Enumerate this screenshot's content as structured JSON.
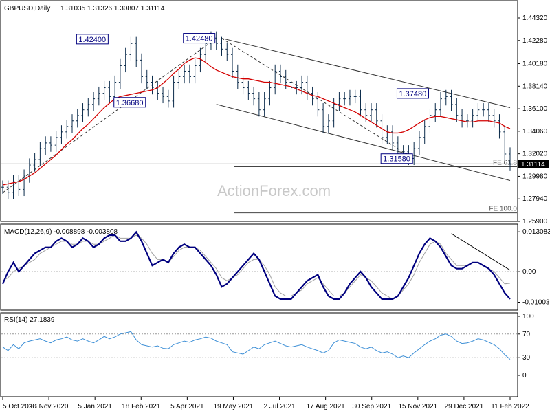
{
  "header": {
    "symbol": "GBPUSD,Daily",
    "ohlc": "1.31035 1.31326 1.30807 1.31114"
  },
  "watermark": "ActionForex.com",
  "colors": {
    "background": "#ffffff",
    "bars": "#0a2a4a",
    "ma": "#d40000",
    "macd": "#00007f",
    "signal": "#a0a0a0",
    "rsi": "#3d8fd6",
    "trendline": "#333333",
    "callout": "#00007f"
  },
  "chart_data": [
    {
      "type": "ohlc",
      "panel": "price",
      "x_ticks": [
        "5 Oct 2020",
        "18 Nov 2020",
        "5 Jan 2021",
        "18 Feb 2021",
        "5 Apr 2021",
        "19 May 2021",
        "2 Jul 2021",
        "17 Aug 2021",
        "30 Sep 2021",
        "15 Nov 2021",
        "29 Dec 2021",
        "11 Feb 2022"
      ],
      "y_ticks": [
        "1.44320",
        "1.42280",
        "1.40180",
        "1.38140",
        "1.36100",
        "1.34060",
        "1.32020",
        "1.29980",
        "1.27940",
        "1.25900"
      ],
      "ylim": [
        1.259,
        1.4432
      ],
      "last_price_label": "1.31114",
      "series": [
        {
          "name": "close",
          "values": [
            1.29,
            1.285,
            1.295,
            1.288,
            1.3,
            1.31,
            1.315,
            1.325,
            1.33,
            1.328,
            1.335,
            1.34,
            1.345,
            1.35,
            1.355,
            1.36,
            1.365,
            1.37,
            1.375,
            1.38,
            1.372,
            1.385,
            1.4,
            1.41,
            1.42,
            1.405,
            1.39,
            1.385,
            1.38,
            1.375,
            1.372,
            1.368,
            1.385,
            1.39,
            1.395,
            1.39,
            1.4,
            1.41,
            1.42,
            1.425,
            1.42,
            1.415,
            1.41,
            1.395,
            1.385,
            1.38,
            1.375,
            1.37,
            1.36,
            1.37,
            1.38,
            1.395,
            1.39,
            1.385,
            1.38,
            1.38,
            1.385,
            1.375,
            1.37,
            1.36,
            1.345,
            1.35,
            1.365,
            1.37,
            1.37,
            1.372,
            1.372,
            1.36,
            1.355,
            1.36,
            1.35,
            1.335,
            1.34,
            1.33,
            1.32,
            1.322,
            1.316,
            1.325,
            1.335,
            1.345,
            1.355,
            1.36,
            1.37,
            1.372,
            1.365,
            1.355,
            1.35,
            1.35,
            1.355,
            1.36,
            1.36,
            1.355,
            1.35,
            1.34,
            1.32,
            1.31114
          ]
        },
        {
          "name": "MA",
          "values": [
            1.292,
            1.293,
            1.294,
            1.295,
            1.297,
            1.3,
            1.303,
            1.307,
            1.311,
            1.315,
            1.319,
            1.324,
            1.329,
            1.333,
            1.338,
            1.343,
            1.347,
            1.352,
            1.357,
            1.362,
            1.366,
            1.37,
            1.372,
            1.373,
            1.374,
            1.375,
            1.376,
            1.377,
            1.378,
            1.38,
            1.384,
            1.388,
            1.393,
            1.397,
            1.402,
            1.405,
            1.407,
            1.406,
            1.403,
            1.399,
            1.396,
            1.394,
            1.392,
            1.39,
            1.389,
            1.388,
            1.388,
            1.387,
            1.386,
            1.385,
            1.385,
            1.384,
            1.383,
            1.382,
            1.381,
            1.379,
            1.377,
            1.375,
            1.373,
            1.372,
            1.37,
            1.368,
            1.366,
            1.364,
            1.362,
            1.36,
            1.358,
            1.355,
            1.352,
            1.349,
            1.346,
            1.343,
            1.34,
            1.339,
            1.339,
            1.34,
            1.342,
            1.345,
            1.348,
            1.351,
            1.353,
            1.354,
            1.354,
            1.353,
            1.352,
            1.351,
            1.35,
            1.349,
            1.349,
            1.35,
            1.35,
            1.35,
            1.349,
            1.348,
            1.345,
            1.343
          ]
        }
      ],
      "annotations": [
        {
          "label": "1.42400",
          "value": 1.424
        },
        {
          "label": "1.42480",
          "value": 1.4248
        },
        {
          "label": "1.36680",
          "value": 1.3668
        },
        {
          "label": "1.37480",
          "value": 1.3748
        },
        {
          "label": "1.31580",
          "value": 1.3158
        }
      ],
      "levels": [
        {
          "label": "FE 61.8",
          "value": 1.3085
        },
        {
          "label": "FE 100.0",
          "value": 1.2667
        }
      ]
    },
    {
      "type": "line",
      "panel": "macd",
      "title": "MACD(12,26,9) -0.008898 -0.003808",
      "y_ticks": [
        "0.013083",
        "0.00",
        "-0.01003"
      ],
      "ylim": [
        -0.0115,
        0.0138
      ],
      "series": [
        {
          "name": "MACD",
          "values": [
            -0.004,
            0.0,
            0.003,
            0.0,
            0.002,
            0.004,
            0.006,
            0.007,
            0.008,
            0.008,
            0.01,
            0.011,
            0.01,
            0.008,
            0.009,
            0.011,
            0.01,
            0.008,
            0.009,
            0.011,
            0.012,
            0.012,
            0.01,
            0.01,
            0.011,
            0.013,
            0.01,
            0.006,
            0.002,
            0.003,
            0.004,
            0.003,
            0.006,
            0.008,
            0.009,
            0.008,
            0.008,
            0.006,
            0.004,
            0.002,
            -0.001,
            -0.005,
            -0.004,
            -0.002,
            0.0,
            0.002,
            0.004,
            0.006,
            0.004,
            0.0,
            -0.004,
            -0.008,
            -0.009,
            -0.009,
            -0.009,
            -0.007,
            -0.005,
            -0.003,
            -0.002,
            -0.001,
            -0.005,
            -0.008,
            -0.009,
            -0.009,
            -0.007,
            -0.004,
            -0.002,
            0.0,
            -0.002,
            -0.005,
            -0.007,
            -0.009,
            -0.009,
            -0.009,
            -0.008,
            -0.005,
            -0.002,
            0.002,
            0.006,
            0.009,
            0.011,
            0.01,
            0.008,
            0.005,
            0.002,
            0.001,
            0.001,
            0.002,
            0.003,
            0.003,
            0.002,
            0.001,
            -0.001,
            -0.004,
            -0.007,
            -0.009
          ]
        },
        {
          "name": "Signal",
          "values": [
            -0.003,
            -0.002,
            0.0,
            0.001,
            0.002,
            0.003,
            0.004,
            0.006,
            0.007,
            0.008,
            0.009,
            0.01,
            0.01,
            0.009,
            0.009,
            0.01,
            0.01,
            0.009,
            0.009,
            0.01,
            0.011,
            0.012,
            0.011,
            0.011,
            0.011,
            0.012,
            0.011,
            0.009,
            0.006,
            0.004,
            0.004,
            0.003,
            0.005,
            0.007,
            0.008,
            0.008,
            0.008,
            0.007,
            0.005,
            0.003,
            0.001,
            -0.002,
            -0.003,
            -0.002,
            -0.001,
            0.001,
            0.003,
            0.004,
            0.004,
            0.002,
            -0.001,
            -0.005,
            -0.007,
            -0.008,
            -0.008,
            -0.007,
            -0.006,
            -0.004,
            -0.003,
            -0.002,
            -0.004,
            -0.006,
            -0.008,
            -0.008,
            -0.007,
            -0.005,
            -0.003,
            -0.001,
            -0.002,
            -0.003,
            -0.005,
            -0.007,
            -0.008,
            -0.009,
            -0.008,
            -0.006,
            -0.004,
            -0.001,
            0.003,
            0.006,
            0.009,
            0.01,
            0.009,
            0.006,
            0.004,
            0.002,
            0.002,
            0.002,
            0.003,
            0.003,
            0.002,
            0.001,
            0.0,
            -0.002,
            -0.004,
            -0.0038
          ]
        }
      ]
    },
    {
      "type": "line",
      "panel": "rsi",
      "title": "RSI(14) 27.1839",
      "y_ticks": [
        "100",
        "70",
        "30",
        "0"
      ],
      "ylim": [
        0,
        100
      ],
      "series": [
        {
          "name": "RSI",
          "values": [
            48,
            42,
            52,
            45,
            55,
            58,
            60,
            62,
            58,
            55,
            60,
            62,
            65,
            60,
            58,
            62,
            58,
            55,
            60,
            66,
            62,
            65,
            70,
            72,
            74,
            60,
            52,
            50,
            48,
            50,
            46,
            45,
            52,
            55,
            58,
            56,
            60,
            62,
            65,
            63,
            58,
            55,
            52,
            40,
            38,
            36,
            42,
            48,
            45,
            52,
            55,
            58,
            54,
            50,
            48,
            50,
            52,
            48,
            45,
            42,
            38,
            42,
            55,
            60,
            58,
            56,
            54,
            48,
            45,
            48,
            42,
            38,
            40,
            36,
            30,
            33,
            30,
            38,
            45,
            52,
            58,
            62,
            68,
            70,
            66,
            58,
            54,
            55,
            58,
            62,
            60,
            56,
            52,
            45,
            35,
            27.1839
          ]
        }
      ]
    }
  ]
}
